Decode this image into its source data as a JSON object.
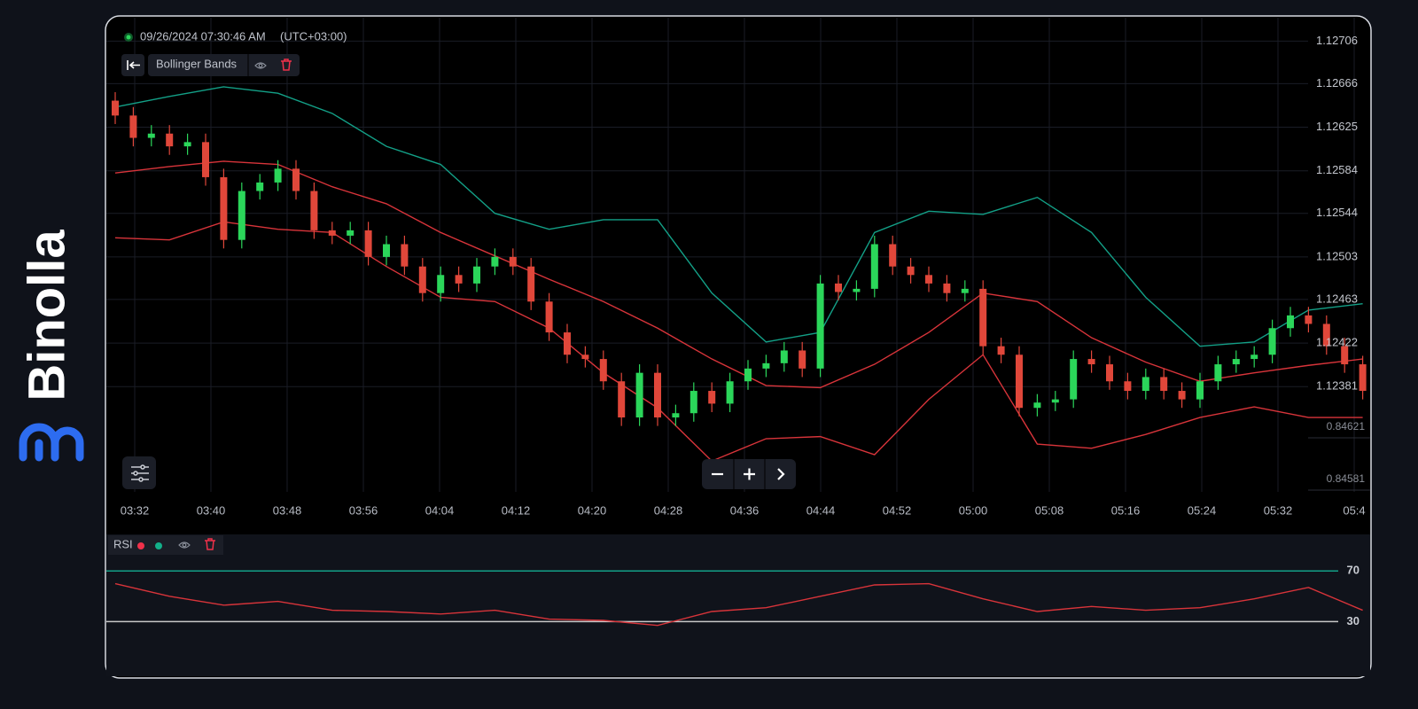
{
  "brand": "Binolla",
  "header": {
    "timestamp": "09/26/2024 07:30:46 AM",
    "timezone": "(UTC+03:00)"
  },
  "indicator": {
    "name": "Bollinger Bands"
  },
  "rsi_panel": {
    "name": "RSI"
  },
  "chart_data": [
    {
      "type": "candlestick",
      "up_color": "#2bd65a",
      "down_color": "#e0473a",
      "ylim": [
        1.12282,
        1.12728
      ],
      "yticks": [
        1.12706,
        1.12666,
        1.12625,
        1.12584,
        1.12544,
        1.12503,
        1.12463,
        1.12422,
        1.12381
      ],
      "extra_price_labels": [
        "0.84621",
        "0.84581"
      ],
      "x_labels": [
        "03:32",
        "03:40",
        "03:48",
        "03:56",
        "04:04",
        "04:12",
        "04:20",
        "04:28",
        "04:36",
        "04:44",
        "04:52",
        "05:00",
        "05:08",
        "05:16",
        "05:24",
        "05:32",
        "05:4"
      ],
      "grid": true,
      "ohlc": [
        [
          1.1265,
          1.12658,
          1.12628,
          1.12636
        ],
        [
          1.12636,
          1.12644,
          1.12607,
          1.12615
        ],
        [
          1.12615,
          1.12627,
          1.12607,
          1.12619
        ],
        [
          1.12619,
          1.12627,
          1.12599,
          1.12607
        ],
        [
          1.12607,
          1.12619,
          1.12599,
          1.12611
        ],
        [
          1.12611,
          1.12619,
          1.1257,
          1.12578
        ],
        [
          1.12578,
          1.12586,
          1.12511,
          1.12519
        ],
        [
          1.12519,
          1.12573,
          1.12511,
          1.12565
        ],
        [
          1.12565,
          1.12581,
          1.12557,
          1.12573
        ],
        [
          1.12573,
          1.12594,
          1.12565,
          1.12586
        ],
        [
          1.12586,
          1.12594,
          1.12557,
          1.12565
        ],
        [
          1.12565,
          1.12573,
          1.1252,
          1.12528
        ],
        [
          1.12528,
          1.12536,
          1.12515,
          1.12523
        ],
        [
          1.12523,
          1.12536,
          1.12515,
          1.12528
        ],
        [
          1.12528,
          1.12536,
          1.12495,
          1.12503
        ],
        [
          1.12503,
          1.12523,
          1.12495,
          1.12515
        ],
        [
          1.12515,
          1.12523,
          1.12486,
          1.12494
        ],
        [
          1.12494,
          1.12502,
          1.12461,
          1.12469
        ],
        [
          1.12469,
          1.12494,
          1.12461,
          1.12486
        ],
        [
          1.12486,
          1.12494,
          1.1247,
          1.12478
        ],
        [
          1.12478,
          1.12502,
          1.1247,
          1.12494
        ],
        [
          1.12494,
          1.12511,
          1.12486,
          1.12503
        ],
        [
          1.12503,
          1.12511,
          1.12486,
          1.12494
        ],
        [
          1.12494,
          1.12502,
          1.12453,
          1.12461
        ],
        [
          1.12461,
          1.12469,
          1.12424,
          1.12432
        ],
        [
          1.12432,
          1.1244,
          1.12403,
          1.12411
        ],
        [
          1.12411,
          1.12419,
          1.12399,
          1.12407
        ],
        [
          1.12407,
          1.12415,
          1.12378,
          1.12386
        ],
        [
          1.12386,
          1.12394,
          1.12344,
          1.12352
        ],
        [
          1.12352,
          1.12402,
          1.12344,
          1.12394
        ],
        [
          1.12394,
          1.12402,
          1.12344,
          1.12352
        ],
        [
          1.12352,
          1.12364,
          1.12344,
          1.12356
        ],
        [
          1.12356,
          1.12385,
          1.12348,
          1.12377
        ],
        [
          1.12377,
          1.12385,
          1.12357,
          1.12365
        ],
        [
          1.12365,
          1.12394,
          1.12357,
          1.12386
        ],
        [
          1.12386,
          1.12406,
          1.12378,
          1.12398
        ],
        [
          1.12398,
          1.12411,
          1.1239,
          1.12403
        ],
        [
          1.12403,
          1.12423,
          1.12395,
          1.12415
        ],
        [
          1.12415,
          1.12423,
          1.1239,
          1.12398
        ],
        [
          1.12398,
          1.12486,
          1.1239,
          1.12478
        ],
        [
          1.12478,
          1.12486,
          1.12462,
          1.1247
        ],
        [
          1.1247,
          1.12481,
          1.12462,
          1.12473
        ],
        [
          1.12473,
          1.12523,
          1.12465,
          1.12515
        ],
        [
          1.12515,
          1.12523,
          1.12486,
          1.12494
        ],
        [
          1.12494,
          1.12502,
          1.12478,
          1.12486
        ],
        [
          1.12486,
          1.12494,
          1.1247,
          1.12478
        ],
        [
          1.12478,
          1.12486,
          1.12461,
          1.12469
        ],
        [
          1.12469,
          1.12481,
          1.12461,
          1.12473
        ],
        [
          1.12473,
          1.12481,
          1.12411,
          1.12419
        ],
        [
          1.12419,
          1.12427,
          1.12403,
          1.12411
        ],
        [
          1.12411,
          1.12419,
          1.12353,
          1.12361
        ],
        [
          1.12361,
          1.12374,
          1.12353,
          1.12366
        ],
        [
          1.12366,
          1.12377,
          1.12358,
          1.12369
        ],
        [
          1.12369,
          1.12415,
          1.12361,
          1.12407
        ],
        [
          1.12407,
          1.12415,
          1.12394,
          1.12402
        ],
        [
          1.12402,
          1.1241,
          1.12378,
          1.12386
        ],
        [
          1.12386,
          1.12394,
          1.12369,
          1.12377
        ],
        [
          1.12377,
          1.12398,
          1.12369,
          1.1239
        ],
        [
          1.1239,
          1.12398,
          1.12369,
          1.12377
        ],
        [
          1.12377,
          1.12385,
          1.12361,
          1.12369
        ],
        [
          1.12369,
          1.12394,
          1.12361,
          1.12386
        ],
        [
          1.12386,
          1.1241,
          1.12378,
          1.12402
        ],
        [
          1.12402,
          1.12415,
          1.12394,
          1.12407
        ],
        [
          1.12407,
          1.12419,
          1.12399,
          1.12411
        ],
        [
          1.12411,
          1.12444,
          1.12403,
          1.12436
        ],
        [
          1.12436,
          1.12456,
          1.12428,
          1.12448
        ],
        [
          1.12448,
          1.12456,
          1.12432,
          1.1244
        ],
        [
          1.1244,
          1.12448,
          1.12411,
          1.12419
        ],
        [
          1.12419,
          1.12427,
          1.12394,
          1.12402
        ],
        [
          1.12402,
          1.1241,
          1.12369,
          1.12377
        ]
      ],
      "band_x": [
        0,
        3,
        6,
        9,
        12,
        15,
        18,
        21,
        24,
        27,
        30,
        33,
        36,
        39,
        42,
        45,
        48,
        51,
        54,
        57,
        60,
        63,
        66,
        69
      ],
      "bands": [
        {
          "color": "#13a087",
          "values": [
            1.12644,
            1.12654,
            1.12663,
            1.12657,
            1.12638,
            1.12607,
            1.1259,
            1.12544,
            1.12529,
            1.12538,
            1.12538,
            1.12469,
            1.12423,
            1.12432,
            1.12526,
            1.12546,
            1.12543,
            1.12559,
            1.12526,
            1.12465,
            1.12419,
            1.12423,
            1.12453,
            1.12459
          ]
        },
        {
          "color": "#d8343a",
          "values": [
            1.12582,
            1.12588,
            1.12593,
            1.1259,
            1.12569,
            1.12553,
            1.12526,
            1.12504,
            1.12482,
            1.12461,
            1.12436,
            1.12407,
            1.12382,
            1.1238,
            1.12402,
            1.12432,
            1.12469,
            1.12461,
            1.12427,
            1.12404,
            1.12386,
            1.12394,
            1.12401,
            1.12407
          ]
        },
        {
          "color": "#d8343a",
          "values": [
            1.12521,
            1.12519,
            1.12536,
            1.12529,
            1.12526,
            1.12494,
            1.12465,
            1.12461,
            1.12436,
            1.12394,
            1.12361,
            1.12311,
            1.12332,
            1.12334,
            1.12317,
            1.12369,
            1.12411,
            1.12327,
            1.12323,
            1.12336,
            1.12352,
            1.12362,
            1.12352,
            1.12352
          ]
        }
      ]
    },
    {
      "type": "line",
      "color": "#d8343a",
      "ylim": [
        -11,
        87
      ],
      "levels": [
        70,
        30
      ],
      "level_colors": [
        "#13a087",
        "#c9c9c9"
      ],
      "legend_dots": [
        "#f0314a",
        "#13b08a"
      ],
      "x": [
        0,
        3,
        6,
        9,
        12,
        15,
        18,
        21,
        24,
        27,
        30,
        33,
        36,
        39,
        42,
        45,
        48,
        51,
        54,
        57,
        60,
        63,
        66,
        69
      ],
      "values": [
        60,
        50,
        43,
        46,
        39,
        38,
        36,
        39,
        32,
        31,
        27,
        38,
        41,
        50,
        59,
        60,
        48,
        38,
        42,
        39,
        41,
        48,
        57,
        39
      ]
    }
  ]
}
